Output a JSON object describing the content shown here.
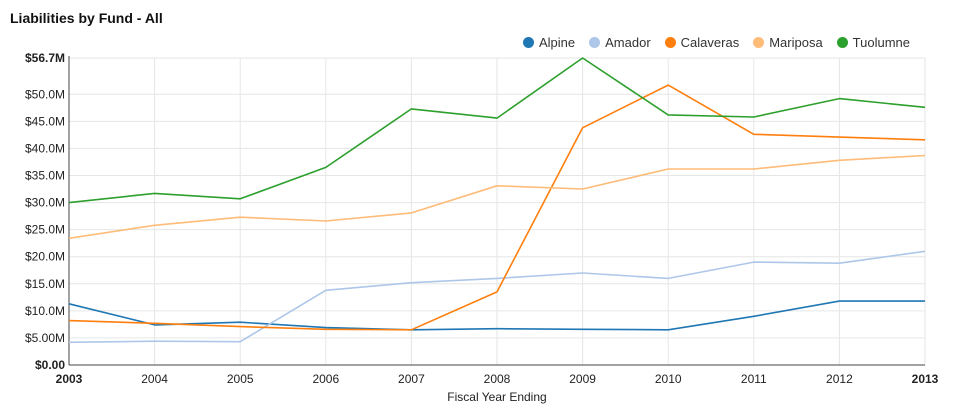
{
  "chart_data": {
    "type": "line",
    "title": "Liabilities by Fund - All",
    "xlabel": "Fiscal Year Ending",
    "ylabel": "",
    "ylim": [
      0,
      56.7
    ],
    "y_ticks": [
      0,
      5,
      10,
      15,
      20,
      25,
      30,
      35,
      40,
      45,
      50,
      56.7
    ],
    "y_tick_labels": [
      "$0.00",
      "$5.00M",
      "$10.0M",
      "$15.0M",
      "$20.0M",
      "$25.0M",
      "$30.0M",
      "$35.0M",
      "$40.0M",
      "$45.0M",
      "$50.0M",
      "$56.7M"
    ],
    "x": [
      "2003",
      "2004",
      "2005",
      "2006",
      "2007",
      "2008",
      "2009",
      "2010",
      "2011",
      "2012",
      "2013"
    ],
    "bold_x_ticks": [
      "2003",
      "2013"
    ],
    "bold_y_ticks": [
      "$0.00",
      "$56.7M"
    ],
    "grid": true,
    "legend_position": "top-right",
    "series": [
      {
        "name": "Alpine",
        "color": "#1f77b4",
        "values": [
          11.3,
          7.4,
          7.9,
          6.9,
          6.5,
          6.7,
          6.6,
          6.5,
          9.0,
          11.8,
          11.8
        ]
      },
      {
        "name": "Amador",
        "color": "#aec7e8",
        "values": [
          4.2,
          4.4,
          4.3,
          13.8,
          15.2,
          16.0,
          17.0,
          16.0,
          19.0,
          18.8,
          21.0
        ]
      },
      {
        "name": "Calaveras",
        "color": "#ff7f0e",
        "values": [
          8.2,
          7.7,
          7.1,
          6.6,
          6.5,
          13.5,
          43.8,
          51.7,
          42.6,
          42.1,
          41.6
        ]
      },
      {
        "name": "Mariposa",
        "color": "#ffbb78",
        "values": [
          23.4,
          25.8,
          27.3,
          26.6,
          28.1,
          33.1,
          32.5,
          36.2,
          36.2,
          37.8,
          38.7
        ]
      },
      {
        "name": "Tuolumne",
        "color": "#2ca02c",
        "values": [
          30.0,
          31.7,
          30.7,
          36.5,
          47.3,
          45.6,
          56.7,
          46.2,
          45.8,
          49.2,
          47.6
        ]
      }
    ]
  }
}
